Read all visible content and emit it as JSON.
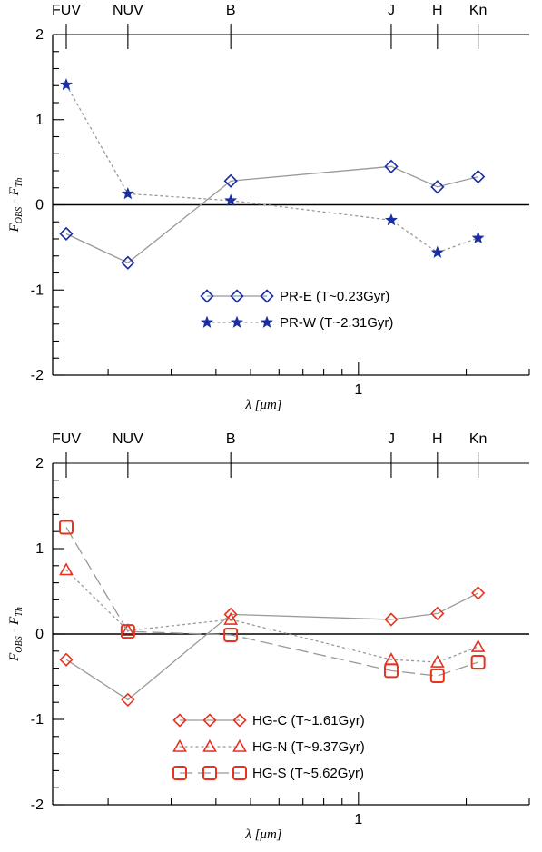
{
  "colors": {
    "blue": "#1a2fa3",
    "red": "#e8321e",
    "connector": "#999999",
    "axis": "#000000"
  },
  "bands": [
    {
      "label": "FUV",
      "wavelength": 0.1528
    },
    {
      "label": "NUV",
      "wavelength": 0.2271
    },
    {
      "label": "B",
      "wavelength": 0.44
    },
    {
      "label": "J",
      "wavelength": 1.235
    },
    {
      "label": "H",
      "wavelength": 1.662
    },
    {
      "label": "Kn",
      "wavelength": 2.159
    }
  ],
  "chart_data": [
    {
      "type": "line",
      "xlabel": "λ [μm]",
      "ylabel": "F_OBS - F_Th",
      "x_scale": "log",
      "xlim": [
        0.14,
        3.0
      ],
      "ylim": [
        -2,
        2
      ],
      "yticks": [
        -2,
        -1,
        0,
        1,
        2
      ],
      "xtick_labels": [
        "1"
      ],
      "x": [
        0.1528,
        0.2271,
        0.44,
        1.235,
        1.662,
        2.159
      ],
      "legend_position": "lower-center",
      "series": [
        {
          "name": "PR-E (T~0.23Gyr)",
          "marker": "diamond",
          "line": "solid",
          "color": "blue",
          "values": [
            -0.34,
            -0.68,
            0.28,
            0.45,
            0.21,
            0.33
          ]
        },
        {
          "name": "PR-W (T~2.31Gyr)",
          "marker": "star",
          "line": "dotted",
          "color": "blue",
          "values": [
            1.41,
            0.13,
            0.05,
            -0.18,
            -0.56,
            -0.39
          ]
        }
      ]
    },
    {
      "type": "line",
      "xlabel": "λ [μm]",
      "ylabel": "F_OBS - F_Th",
      "x_scale": "log",
      "xlim": [
        0.14,
        3.0
      ],
      "ylim": [
        -2,
        2
      ],
      "yticks": [
        -2,
        -1,
        0,
        1,
        2
      ],
      "xtick_labels": [
        "1"
      ],
      "x": [
        0.1528,
        0.2271,
        0.44,
        1.235,
        1.662,
        2.159
      ],
      "legend_position": "lower-center",
      "series": [
        {
          "name": "HG-C (T~1.61Gyr)",
          "marker": "diamond",
          "line": "solid",
          "color": "red",
          "values": [
            -0.3,
            -0.77,
            0.23,
            0.17,
            0.24,
            0.48
          ]
        },
        {
          "name": "HG-N (T~9.37Gyr)",
          "marker": "triangle",
          "line": "dotted",
          "color": "red",
          "values": [
            0.75,
            0.04,
            0.17,
            -0.3,
            -0.33,
            -0.15
          ]
        },
        {
          "name": "HG-S (T~5.62Gyr)",
          "marker": "square",
          "line": "dashed",
          "color": "red",
          "values": [
            1.25,
            0.03,
            -0.01,
            -0.43,
            -0.49,
            -0.33
          ]
        }
      ]
    }
  ]
}
